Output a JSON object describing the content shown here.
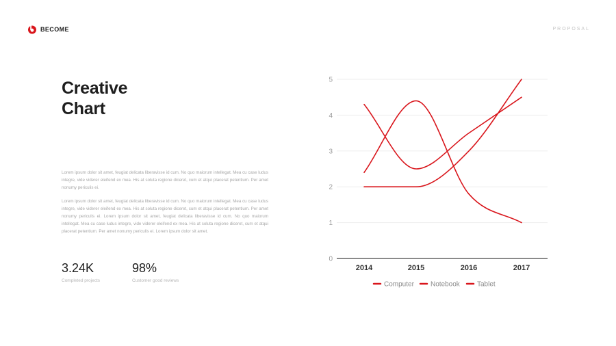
{
  "brand": {
    "name": "BECOME"
  },
  "header": {
    "right_label": "PROPOSAL"
  },
  "title": {
    "line1": "Creative",
    "line2": "Chart"
  },
  "paragraphs": [
    "Lorem ipsum dolor sit amet, feugiat delicata liberavisse id cum. No quo maiorum intellegat. Mea cu case ludus integre, vide viderer eleifend ex mea. His at soluta regione diceret, cum et atqui placerat petentium. Per amet nonumy periculis ei.",
    "Lorem ipsum dolor sit amet, feugiat delicata liberavisse id cum. No quo maiorum intellegat. Mea cu case ludus integre, vide viderer eleifend ex mea. His at soluta regione diceret, cum et atqui placerat petentium. Per amet nonumy periculis ei. Lorem ipsum dolor sit amet, feugiat delicata liberavisse id cum. No quo maiorum intellegat. Mea cu case ludus integre, vide viderer eleifend ex mea. His at soluta regione diceret, cum et atqui placerat petentium. Per amet nonumy periculis ei. Lorem ipsum dolor sit amet."
  ],
  "stats": [
    {
      "value": "3.24K",
      "label": "Completed projects"
    },
    {
      "value": "98%",
      "label": "Customer good reviews"
    }
  ],
  "colors": {
    "accent": "#d9161c",
    "grid": "#ededed",
    "axis": "#444444"
  },
  "chart_data": {
    "type": "line",
    "categories": [
      "2014",
      "2015",
      "2016",
      "2017"
    ],
    "ylim": [
      0,
      5
    ],
    "yticks": [
      0,
      1,
      2,
      3,
      4,
      5
    ],
    "grid": true,
    "legend": "bottom",
    "series": [
      {
        "name": "Computer",
        "values": [
          2.0,
          2.0,
          3.0,
          5.0
        ]
      },
      {
        "name": "Notebook",
        "values": [
          4.3,
          2.5,
          3.5,
          4.5
        ]
      },
      {
        "name": "Tablet",
        "values": [
          2.4,
          4.4,
          1.8,
          1.0
        ]
      }
    ]
  }
}
